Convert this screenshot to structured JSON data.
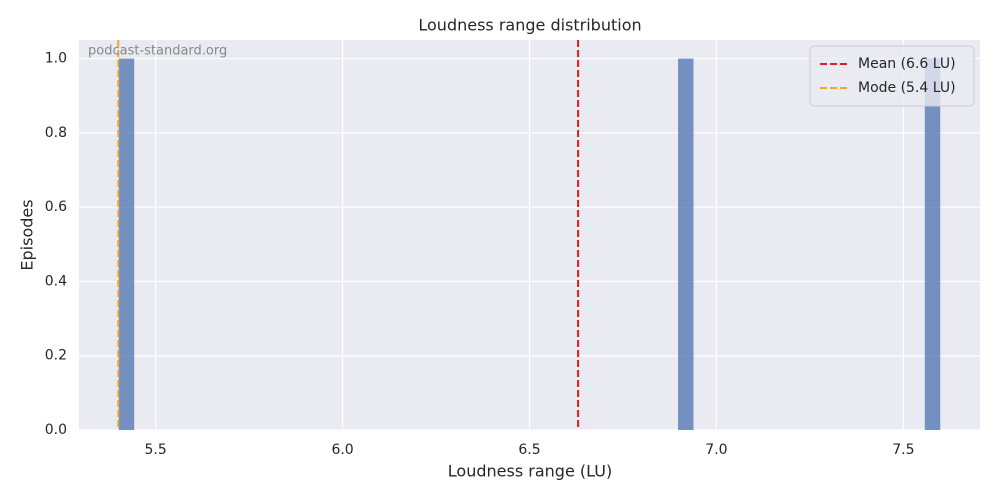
{
  "chart_data": {
    "type": "histogram",
    "title": "Loudness range distribution",
    "xlabel": "Loudness range (LU)",
    "ylabel": "Episodes",
    "watermark": "podcast-standard.org",
    "bins": [
      5.4,
      5.444,
      5.488,
      5.532,
      5.576,
      5.62,
      5.664,
      5.708,
      5.752,
      5.796,
      5.84,
      5.884,
      5.928,
      5.972,
      6.016,
      6.06,
      6.104,
      6.148,
      6.192,
      6.236,
      6.28,
      6.324,
      6.368,
      6.412,
      6.456,
      6.5,
      6.544,
      6.588,
      6.632,
      6.676,
      6.72,
      6.764,
      6.808,
      6.852,
      6.896,
      6.94,
      6.984,
      7.028,
      7.072,
      7.116,
      7.16,
      7.204,
      7.248,
      7.292,
      7.336,
      7.38,
      7.424,
      7.468,
      7.512,
      7.556,
      7.6
    ],
    "values": [
      1,
      0,
      0,
      0,
      0,
      0,
      0,
      0,
      0,
      0,
      0,
      0,
      0,
      0,
      0,
      0,
      0,
      0,
      0,
      0,
      0,
      0,
      0,
      0,
      0,
      0,
      0,
      0,
      0,
      0,
      0,
      0,
      0,
      0,
      1,
      0,
      0,
      0,
      0,
      0,
      0,
      0,
      0,
      0,
      0,
      0,
      0,
      0,
      0,
      1
    ],
    "color": "#4c72b0",
    "reference_lines": [
      {
        "name": "Mean (6.6 LU)",
        "value": 6.63,
        "color": "#e41a1c"
      },
      {
        "name": "Mode (5.4 LU)",
        "value": 5.4,
        "color": "#f5a623"
      }
    ],
    "legend": "upper right",
    "grid": true,
    "xlim": [
      5.295,
      7.705
    ],
    "ylim": [
      0,
      1.05
    ],
    "xticks": [
      5.5,
      {
        "value": 6.0,
        "label": "6.0"
      },
      6.5,
      {
        "value": 7.0,
        "label": "7.0"
      },
      7.5
    ],
    "yticks": [
      {
        "value": 0,
        "label": "0.0"
      },
      0.2,
      0.4,
      0.6,
      0.8,
      {
        "value": 1,
        "label": "1.0"
      }
    ]
  }
}
